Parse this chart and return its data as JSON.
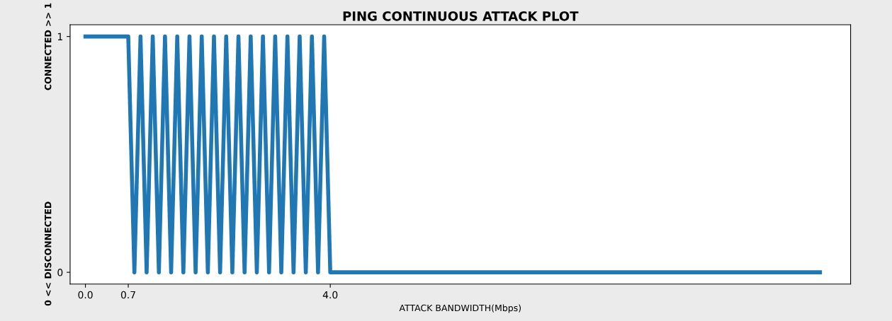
{
  "chart_data": {
    "type": "line",
    "title": "PING CONTINUOUS ATTACK PLOT",
    "xlabel": "ATTACK BANDWIDTH(Mbps)",
    "ylabel": "0 << DISCONNECTED                                    CONNECTED >> 1",
    "x": [
      0.0,
      0.7,
      0.8,
      0.9,
      1.0,
      1.1,
      1.2,
      1.3,
      1.4,
      1.5,
      1.6,
      1.7,
      1.8,
      1.9,
      2.0,
      2.1,
      2.2,
      2.3,
      2.4,
      2.5,
      2.6,
      2.7,
      2.8,
      2.9,
      3.0,
      3.1,
      3.2,
      3.3,
      3.4,
      3.5,
      3.6,
      3.7,
      3.8,
      3.9,
      4.0,
      12.0
    ],
    "series": [
      {
        "color": "#1f77b4",
        "values": [
          1,
          1,
          0,
          1,
          0,
          1,
          0,
          1,
          0,
          1,
          0,
          1,
          0,
          1,
          0,
          1,
          0,
          1,
          0,
          1,
          0,
          1,
          0,
          1,
          0,
          1,
          0,
          1,
          0,
          1,
          0,
          1,
          0,
          1,
          0,
          0
        ]
      }
    ],
    "xlim": [
      -0.25,
      12.5
    ],
    "ylim": [
      -0.05,
      1.05
    ],
    "xticks": [
      {
        "value": 0.0,
        "label": "0.0"
      },
      {
        "value": 0.7,
        "label": "0.7"
      },
      {
        "value": 4.0,
        "label": "4.0"
      }
    ],
    "yticks": [
      0,
      1
    ],
    "grid": false,
    "legend": false,
    "marker": "none",
    "line_style": "solid"
  }
}
